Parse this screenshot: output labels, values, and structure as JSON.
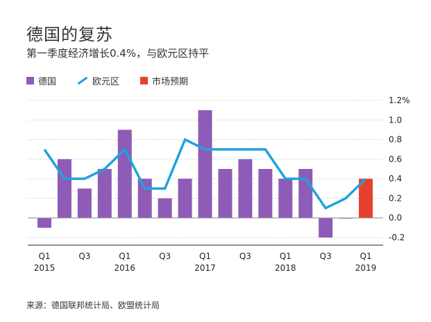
{
  "title": "德国的复苏",
  "subtitle": "第一季度经济增长0.4%，与欧元区持平",
  "source": "来源：德国联邦统计局、欧盟统计局",
  "legend": {
    "germany": "德国",
    "eurozone": "欧元区",
    "forecast": "市场预期"
  },
  "colors": {
    "germany": "#8E5BB7",
    "eurozone": "#1FA2DE",
    "forecast": "#E8402F",
    "grid": "#BBBBBB"
  },
  "chart_data": {
    "type": "bar",
    "title": "德国的复苏",
    "subtitle": "第一季度经济增长0.4%，与欧元区持平",
    "ylim": [
      -0.2,
      1.2
    ],
    "yticks": [
      "1.2%",
      "1.0",
      "0.8",
      "0.6",
      "0.4",
      "0.2",
      "0.0",
      "-0.2"
    ],
    "ytick_values": [
      1.2,
      1.0,
      0.8,
      0.6,
      0.4,
      0.2,
      0.0,
      -0.2
    ],
    "x_tick_labels": [
      {
        "index": 0,
        "q": "Q1",
        "year": "2015"
      },
      {
        "index": 2,
        "q": "Q3",
        "year": ""
      },
      {
        "index": 4,
        "q": "Q1",
        "year": "2016"
      },
      {
        "index": 6,
        "q": "Q3",
        "year": ""
      },
      {
        "index": 8,
        "q": "Q1",
        "year": "2017"
      },
      {
        "index": 10,
        "q": "Q3",
        "year": ""
      },
      {
        "index": 12,
        "q": "Q1",
        "year": "2018"
      },
      {
        "index": 14,
        "q": "Q3",
        "year": ""
      },
      {
        "index": 16,
        "q": "Q1",
        "year": "2019"
      }
    ],
    "categories": [
      "2015Q1",
      "2015Q2",
      "2015Q3",
      "2015Q4",
      "2016Q1",
      "2016Q2",
      "2016Q3",
      "2016Q4",
      "2017Q1",
      "2017Q2",
      "2017Q3",
      "2017Q4",
      "2018Q1",
      "2018Q2",
      "2018Q3",
      "2018Q4",
      "2019Q1"
    ],
    "series": [
      {
        "name": "德国",
        "type": "bar",
        "values": [
          -0.1,
          0.6,
          0.3,
          0.5,
          0.9,
          0.4,
          0.2,
          0.4,
          1.1,
          0.5,
          0.6,
          0.5,
          0.4,
          0.5,
          -0.2,
          0.0,
          null
        ]
      },
      {
        "name": "欧元区",
        "type": "line",
        "values": [
          0.7,
          0.4,
          0.4,
          0.5,
          0.7,
          0.3,
          0.3,
          0.8,
          0.7,
          0.7,
          0.7,
          0.7,
          0.4,
          0.4,
          0.1,
          0.2,
          0.4
        ]
      },
      {
        "name": "市场预期",
        "type": "bar",
        "values": [
          null,
          null,
          null,
          null,
          null,
          null,
          null,
          null,
          null,
          null,
          null,
          null,
          null,
          null,
          null,
          null,
          0.4
        ]
      }
    ],
    "grid": true,
    "legend_position": "top-left"
  }
}
